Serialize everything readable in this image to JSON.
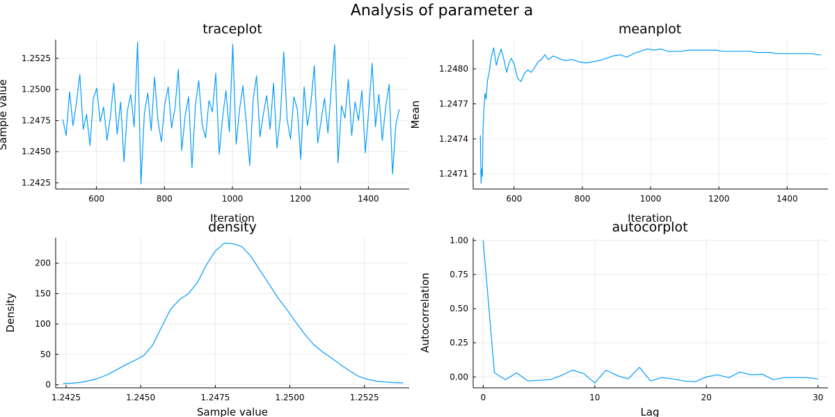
{
  "figure": {
    "title": "Analysis of parameter a"
  },
  "colors": {
    "series": "#009AF9",
    "axis": "#000000"
  },
  "chart_data": [
    {
      "type": "line",
      "title": "traceplot",
      "xlabel": "Iteration",
      "ylabel": "Sample value",
      "xlim": [
        480,
        1520
      ],
      "ylim": [
        1.242,
        1.254
      ],
      "xticks": [
        600,
        800,
        1000,
        1200,
        1400
      ],
      "xtick_labels": [
        "600",
        "800",
        "1000",
        "1200",
        "1400"
      ],
      "yticks": [
        1.2425,
        1.245,
        1.2475,
        1.25,
        1.2525
      ],
      "ytick_labels": [
        "1.2425",
        "1.2450",
        "1.2475",
        "1.2500",
        "1.2525"
      ],
      "grid": true,
      "series": [
        {
          "x_start": 501,
          "x_step": 10,
          "values": [
            1.2476,
            1.2463,
            1.2498,
            1.2471,
            1.2489,
            1.2512,
            1.2468,
            1.248,
            1.2455,
            1.2493,
            1.2501,
            1.2474,
            1.2486,
            1.2459,
            1.2478,
            1.2505,
            1.2464,
            1.249,
            1.2442,
            1.2483,
            1.2496,
            1.247,
            1.2538,
            1.2424,
            1.2481,
            1.2497,
            1.2467,
            1.251,
            1.2475,
            1.2458,
            1.2488,
            1.2502,
            1.2469,
            1.2485,
            1.2516,
            1.2451,
            1.2479,
            1.2494,
            1.2437,
            1.2487,
            1.2507,
            1.2472,
            1.2461,
            1.2491,
            1.2482,
            1.2513,
            1.2448,
            1.2477,
            1.2499,
            1.2466,
            1.2536,
            1.2456,
            1.2484,
            1.2503,
            1.2473,
            1.2439,
            1.2492,
            1.2511,
            1.2462,
            1.248,
            1.2495,
            1.2468,
            1.2505,
            1.2453,
            1.2478,
            1.253,
            1.2476,
            1.246,
            1.2494,
            1.2484,
            1.2444,
            1.2502,
            1.2471,
            1.2489,
            1.2519,
            1.2457,
            1.2475,
            1.2493,
            1.2465,
            1.2501,
            1.2536,
            1.2441,
            1.2487,
            1.2477,
            1.2508,
            1.2463,
            1.249,
            1.2475,
            1.2499,
            1.2449,
            1.2483,
            1.2521,
            1.247,
            1.2496,
            1.2459,
            1.2486,
            1.2504,
            1.2432,
            1.2472,
            1.2484
          ]
        }
      ]
    },
    {
      "type": "line",
      "title": "meanplot",
      "xlabel": "Iteration",
      "ylabel": "Mean",
      "xlim": [
        480,
        1520
      ],
      "ylim": [
        1.24697,
        1.24825
      ],
      "xticks": [
        600,
        800,
        1000,
        1200,
        1400
      ],
      "xtick_labels": [
        "600",
        "800",
        "1000",
        "1200",
        "1400"
      ],
      "yticks": [
        1.2471,
        1.2474,
        1.2477,
        1.248
      ],
      "ytick_labels": [
        "1.2471",
        "1.2474",
        "1.2477",
        "1.2480"
      ],
      "grid": true,
      "series": [
        {
          "x": [
            501,
            503,
            505,
            507,
            509,
            512,
            515,
            518,
            522,
            527,
            533,
            540,
            548,
            555,
            562,
            570,
            578,
            585,
            592,
            600,
            610,
            620,
            630,
            640,
            650,
            660,
            670,
            680,
            690,
            700,
            715,
            730,
            750,
            770,
            790,
            810,
            830,
            850,
            870,
            890,
            910,
            930,
            950,
            970,
            990,
            1010,
            1030,
            1050,
            1070,
            1090,
            1110,
            1130,
            1150,
            1170,
            1190,
            1210,
            1230,
            1250,
            1270,
            1290,
            1310,
            1330,
            1350,
            1370,
            1390,
            1410,
            1430,
            1450,
            1470,
            1490,
            1500
          ],
          "values": [
            1.24743,
            1.24702,
            1.24714,
            1.24708,
            1.24748,
            1.24768,
            1.24779,
            1.24774,
            1.2479,
            1.24797,
            1.2481,
            1.24818,
            1.24803,
            1.24811,
            1.24817,
            1.24808,
            1.24797,
            1.24805,
            1.24809,
            1.24804,
            1.24792,
            1.24789,
            1.24796,
            1.24799,
            1.24797,
            1.24801,
            1.24806,
            1.24808,
            1.24812,
            1.24808,
            1.24811,
            1.24809,
            1.24807,
            1.24808,
            1.24806,
            1.24805,
            1.24806,
            1.24807,
            1.24809,
            1.24811,
            1.24812,
            1.2481,
            1.24813,
            1.24815,
            1.24817,
            1.24816,
            1.24817,
            1.24815,
            1.24815,
            1.24815,
            1.24816,
            1.24816,
            1.24816,
            1.24816,
            1.24816,
            1.24815,
            1.24815,
            1.24815,
            1.24815,
            1.24815,
            1.24814,
            1.24814,
            1.24814,
            1.24813,
            1.24813,
            1.24813,
            1.24813,
            1.24813,
            1.24813,
            1.24812,
            1.24812
          ]
        }
      ]
    },
    {
      "type": "line",
      "title": "density",
      "xlabel": "Sample value",
      "ylabel": "Density",
      "xlim": [
        1.24215,
        1.254
      ],
      "ylim": [
        -5,
        242
      ],
      "xticks": [
        1.2425,
        1.245,
        1.2475,
        1.25,
        1.2525
      ],
      "xtick_labels": [
        "1.2425",
        "1.2450",
        "1.2475",
        "1.2500",
        "1.2525"
      ],
      "yticks": [
        0,
        50,
        100,
        150,
        200
      ],
      "ytick_labels": [
        "0",
        "50",
        "100",
        "150",
        "200"
      ],
      "grid": true,
      "series": [
        {
          "x": [
            1.2424,
            1.2427,
            1.243,
            1.2433,
            1.2436,
            1.2439,
            1.2442,
            1.2445,
            1.2448,
            1.2451,
            1.2454,
            1.2457,
            1.246,
            1.2463,
            1.2466,
            1.2469,
            1.2472,
            1.2475,
            1.2478,
            1.2481,
            1.2484,
            1.2487,
            1.249,
            1.2493,
            1.2496,
            1.2499,
            1.2502,
            1.2505,
            1.2508,
            1.2511,
            1.2514,
            1.2517,
            1.252,
            1.2523,
            1.2526,
            1.2529,
            1.2532,
            1.2535,
            1.2538
          ],
          "values": [
            2,
            2.5,
            4,
            7,
            11,
            17,
            25,
            33,
            40,
            48,
            65,
            95,
            124,
            140,
            150,
            168,
            197,
            220,
            233,
            232,
            227,
            211,
            188,
            166,
            143,
            124,
            103,
            83,
            66,
            54,
            44,
            33,
            23,
            14,
            9,
            6,
            4.5,
            3.5,
            3
          ]
        }
      ]
    },
    {
      "type": "line",
      "title": "autocorplot",
      "xlabel": "Lag",
      "ylabel": "Autocorrelation",
      "xlim": [
        -0.9,
        30.9
      ],
      "ylim": [
        -0.08,
        1.02
      ],
      "xticks": [
        0,
        10,
        20,
        30
      ],
      "xtick_labels": [
        "0",
        "10",
        "20",
        "30"
      ],
      "yticks": [
        0.0,
        0.25,
        0.5,
        0.75,
        1.0
      ],
      "ytick_labels": [
        "0.00",
        "0.25",
        "0.50",
        "0.75",
        "1.00"
      ],
      "grid": true,
      "series": [
        {
          "x": [
            0,
            1,
            2,
            3,
            4,
            5,
            6,
            7,
            8,
            9,
            10,
            11,
            12,
            13,
            14,
            15,
            16,
            17,
            18,
            19,
            20,
            21,
            22,
            23,
            24,
            25,
            26,
            27,
            28,
            29,
            30
          ],
          "values": [
            1.0,
            0.03,
            -0.02,
            0.03,
            -0.03,
            -0.025,
            -0.02,
            0.01,
            0.05,
            0.025,
            -0.045,
            0.05,
            0.01,
            -0.015,
            0.07,
            -0.03,
            -0.005,
            -0.015,
            -0.03,
            -0.035,
            0.0,
            0.015,
            -0.005,
            0.035,
            0.015,
            0.02,
            -0.02,
            -0.005,
            -0.005,
            -0.005,
            -0.015
          ]
        }
      ]
    }
  ]
}
